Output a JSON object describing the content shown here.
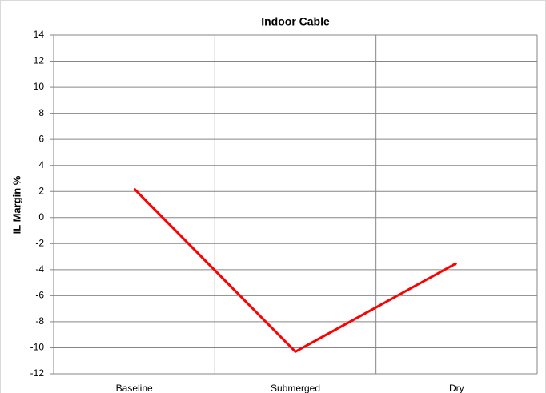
{
  "chart_data": {
    "type": "line",
    "title": "Indoor Cable",
    "y_label": "IL Margin %",
    "categories": [
      "Baseline",
      "Submerged",
      "Dry"
    ],
    "values": [
      2.2,
      -10.3,
      -3.5
    ],
    "color": "#ff0000",
    "ylim": [
      -12,
      14
    ],
    "yticks": [
      -12,
      -10,
      -8,
      -6,
      -4,
      -2,
      0,
      2,
      4,
      6,
      8,
      10,
      12,
      14
    ],
    "grid": true
  }
}
